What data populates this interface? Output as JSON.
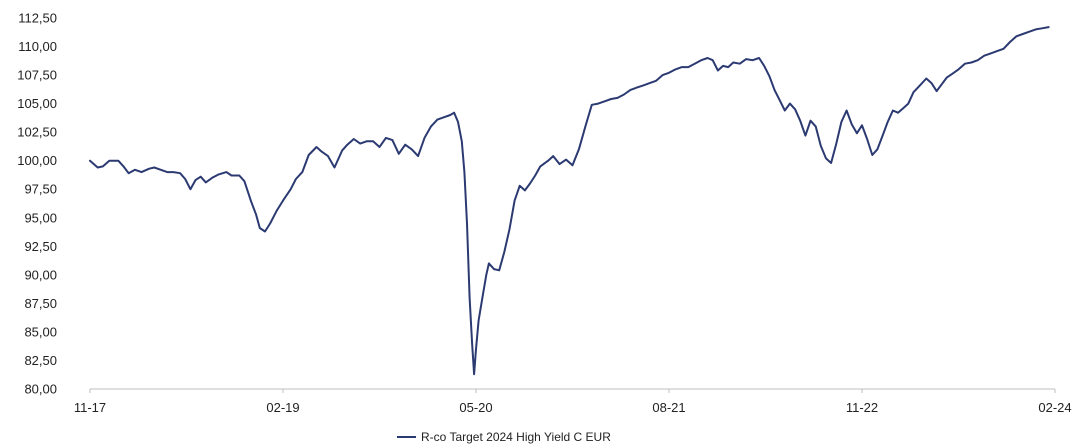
{
  "chart_data": {
    "type": "line",
    "title": "",
    "xlabel": "",
    "ylabel": "",
    "ylim": [
      80,
      112.5
    ],
    "yticks": [
      "80,00",
      "82,50",
      "85,00",
      "87,50",
      "90,00",
      "92,50",
      "95,00",
      "97,50",
      "100,00",
      "102,50",
      "105,00",
      "107,50",
      "110,00",
      "112,50"
    ],
    "xticks": [
      "11-17",
      "02-19",
      "05-20",
      "08-21",
      "11-22",
      "02-24"
    ],
    "grid": false,
    "legend_position": "bottom-center",
    "color": "#2c3a72",
    "series": [
      {
        "name": "R-co Target 2024 High Yield C EUR",
        "points": [
          [
            0.0,
            100.0
          ],
          [
            0.6,
            99.4
          ],
          [
            1.0,
            99.5
          ],
          [
            1.5,
            100.0
          ],
          [
            2.2,
            100.0
          ],
          [
            2.6,
            99.5
          ],
          [
            3.0,
            98.9
          ],
          [
            3.5,
            99.2
          ],
          [
            4.0,
            99.0
          ],
          [
            4.6,
            99.3
          ],
          [
            5.0,
            99.4
          ],
          [
            5.5,
            99.2
          ],
          [
            6.0,
            99.0
          ],
          [
            6.5,
            99.0
          ],
          [
            7.0,
            98.9
          ],
          [
            7.4,
            98.4
          ],
          [
            7.8,
            97.5
          ],
          [
            8.2,
            98.3
          ],
          [
            8.6,
            98.6
          ],
          [
            9.0,
            98.1
          ],
          [
            9.5,
            98.5
          ],
          [
            10.0,
            98.8
          ],
          [
            10.6,
            99.0
          ],
          [
            11.0,
            98.7
          ],
          [
            11.6,
            98.7
          ],
          [
            12.0,
            98.2
          ],
          [
            12.5,
            96.5
          ],
          [
            12.9,
            95.3
          ],
          [
            13.2,
            94.1
          ],
          [
            13.6,
            93.8
          ],
          [
            14.0,
            94.5
          ],
          [
            14.5,
            95.6
          ],
          [
            15.0,
            96.5
          ],
          [
            15.6,
            97.5
          ],
          [
            16.0,
            98.4
          ],
          [
            16.5,
            99.0
          ],
          [
            17.0,
            100.5
          ],
          [
            17.6,
            101.2
          ],
          [
            18.0,
            100.8
          ],
          [
            18.5,
            100.4
          ],
          [
            19.0,
            99.4
          ],
          [
            19.6,
            100.9
          ],
          [
            20.0,
            101.4
          ],
          [
            20.5,
            101.9
          ],
          [
            21.0,
            101.5
          ],
          [
            21.5,
            101.7
          ],
          [
            22.0,
            101.7
          ],
          [
            22.5,
            101.2
          ],
          [
            23.0,
            102.0
          ],
          [
            23.5,
            101.8
          ],
          [
            24.0,
            100.6
          ],
          [
            24.5,
            101.4
          ],
          [
            25.0,
            101.0
          ],
          [
            25.5,
            100.4
          ],
          [
            26.0,
            102.0
          ],
          [
            26.5,
            103.0
          ],
          [
            27.0,
            103.6
          ],
          [
            27.5,
            103.8
          ],
          [
            28.0,
            104.0
          ],
          [
            28.3,
            104.2
          ],
          [
            28.6,
            103.4
          ],
          [
            28.9,
            101.7
          ],
          [
            29.1,
            99.0
          ],
          [
            29.3,
            94.5
          ],
          [
            29.5,
            88.0
          ],
          [
            29.7,
            84.0
          ],
          [
            29.85,
            81.3
          ],
          [
            30.0,
            83.5
          ],
          [
            30.2,
            86.0
          ],
          [
            30.5,
            88.0
          ],
          [
            30.8,
            90.0
          ],
          [
            31.0,
            91.0
          ],
          [
            31.4,
            90.5
          ],
          [
            31.8,
            90.4
          ],
          [
            32.2,
            92.0
          ],
          [
            32.6,
            94.0
          ],
          [
            33.0,
            96.5
          ],
          [
            33.4,
            97.8
          ],
          [
            33.8,
            97.4
          ],
          [
            34.2,
            98.0
          ],
          [
            34.6,
            98.7
          ],
          [
            35.0,
            99.5
          ],
          [
            35.6,
            100.0
          ],
          [
            36.0,
            100.4
          ],
          [
            36.5,
            99.7
          ],
          [
            37.0,
            100.1
          ],
          [
            37.5,
            99.6
          ],
          [
            38.0,
            101.0
          ],
          [
            38.5,
            103.0
          ],
          [
            39.0,
            104.9
          ],
          [
            39.5,
            105.0
          ],
          [
            40.0,
            105.2
          ],
          [
            40.5,
            105.4
          ],
          [
            41.0,
            105.5
          ],
          [
            41.5,
            105.8
          ],
          [
            42.0,
            106.2
          ],
          [
            42.5,
            106.4
          ],
          [
            43.0,
            106.6
          ],
          [
            43.5,
            106.8
          ],
          [
            44.0,
            107.0
          ],
          [
            44.5,
            107.5
          ],
          [
            45.0,
            107.7
          ],
          [
            45.5,
            108.0
          ],
          [
            46.0,
            108.2
          ],
          [
            46.5,
            108.2
          ],
          [
            47.0,
            108.5
          ],
          [
            47.5,
            108.8
          ],
          [
            48.0,
            109.0
          ],
          [
            48.4,
            108.8
          ],
          [
            48.8,
            107.9
          ],
          [
            49.2,
            108.3
          ],
          [
            49.6,
            108.2
          ],
          [
            50.0,
            108.6
          ],
          [
            50.5,
            108.5
          ],
          [
            51.0,
            108.9
          ],
          [
            51.5,
            108.8
          ],
          [
            52.0,
            109.0
          ],
          [
            52.4,
            108.3
          ],
          [
            52.8,
            107.4
          ],
          [
            53.2,
            106.2
          ],
          [
            53.6,
            105.3
          ],
          [
            54.0,
            104.4
          ],
          [
            54.4,
            105.0
          ],
          [
            54.8,
            104.5
          ],
          [
            55.2,
            103.5
          ],
          [
            55.6,
            102.2
          ],
          [
            56.0,
            103.5
          ],
          [
            56.4,
            103.0
          ],
          [
            56.8,
            101.3
          ],
          [
            57.2,
            100.2
          ],
          [
            57.6,
            99.8
          ],
          [
            58.0,
            101.5
          ],
          [
            58.4,
            103.4
          ],
          [
            58.8,
            104.4
          ],
          [
            59.2,
            103.2
          ],
          [
            59.6,
            102.4
          ],
          [
            60.0,
            103.1
          ],
          [
            60.4,
            101.9
          ],
          [
            60.8,
            100.5
          ],
          [
            61.2,
            101.0
          ],
          [
            61.6,
            102.2
          ],
          [
            62.0,
            103.4
          ],
          [
            62.4,
            104.4
          ],
          [
            62.8,
            104.2
          ],
          [
            63.2,
            104.6
          ],
          [
            63.6,
            105.0
          ],
          [
            64.0,
            106.0
          ],
          [
            64.5,
            106.6
          ],
          [
            65.0,
            107.2
          ],
          [
            65.4,
            106.8
          ],
          [
            65.8,
            106.1
          ],
          [
            66.2,
            106.7
          ],
          [
            66.6,
            107.3
          ],
          [
            67.0,
            107.6
          ],
          [
            67.5,
            108.0
          ],
          [
            68.0,
            108.5
          ],
          [
            68.5,
            108.6
          ],
          [
            69.0,
            108.8
          ],
          [
            69.5,
            109.2
          ],
          [
            70.0,
            109.4
          ],
          [
            70.5,
            109.6
          ],
          [
            71.0,
            109.8
          ],
          [
            71.5,
            110.4
          ],
          [
            72.0,
            110.9
          ],
          [
            72.5,
            111.1
          ],
          [
            73.0,
            111.3
          ],
          [
            73.5,
            111.5
          ],
          [
            74.0,
            111.6
          ],
          [
            74.5,
            111.7
          ]
        ]
      }
    ]
  }
}
